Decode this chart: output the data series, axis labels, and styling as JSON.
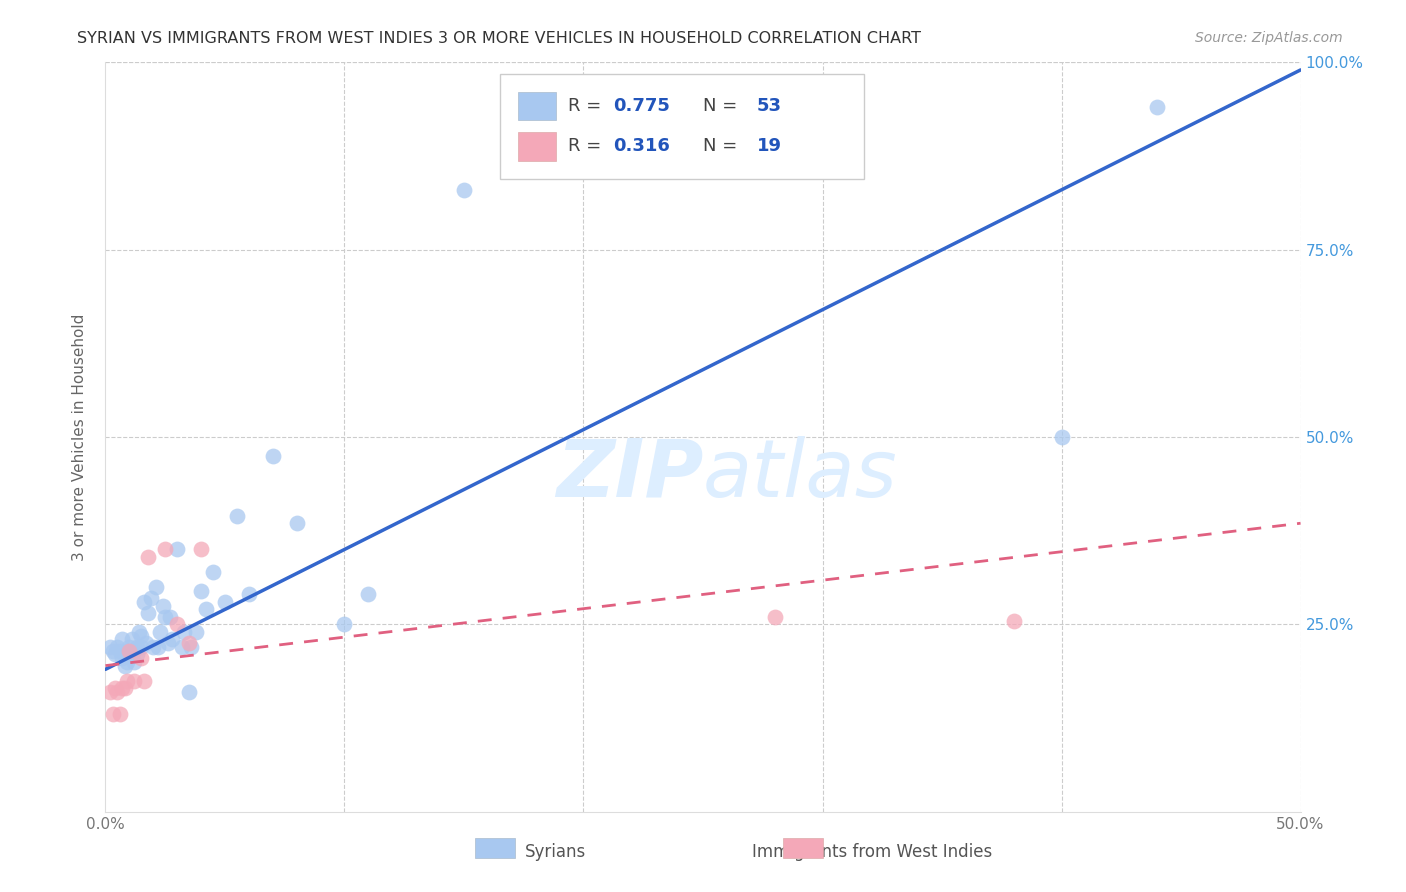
{
  "title": "SYRIAN VS IMMIGRANTS FROM WEST INDIES 3 OR MORE VEHICLES IN HOUSEHOLD CORRELATION CHART",
  "source": "Source: ZipAtlas.com",
  "ylabel": "3 or more Vehicles in Household",
  "xmin": 0.0,
  "xmax": 0.5,
  "ymin": 0.0,
  "ymax": 1.0,
  "syrian_color": "#a8c8f0",
  "syrian_edge_color": "#88aadd",
  "west_indies_color": "#f4a8b8",
  "west_indies_edge_color": "#dd88aa",
  "syrian_line_color": "#3366cc",
  "west_indies_line_color": "#e06080",
  "R_syrian": 0.775,
  "N_syrian": 53,
  "R_west_indies": 0.316,
  "N_west_indies": 19,
  "watermark_zip": "ZIP",
  "watermark_atlas": "atlas",
  "watermark_color": "#ddeeff",
  "legend_label_1": "Syrians",
  "legend_label_2": "Immigrants from West Indies",
  "syrian_scatter_x": [
    0.002,
    0.003,
    0.004,
    0.005,
    0.006,
    0.007,
    0.007,
    0.008,
    0.008,
    0.009,
    0.009,
    0.01,
    0.01,
    0.011,
    0.012,
    0.012,
    0.013,
    0.013,
    0.014,
    0.015,
    0.015,
    0.016,
    0.017,
    0.018,
    0.019,
    0.02,
    0.021,
    0.022,
    0.023,
    0.024,
    0.025,
    0.026,
    0.027,
    0.028,
    0.03,
    0.032,
    0.033,
    0.035,
    0.036,
    0.038,
    0.04,
    0.042,
    0.045,
    0.05,
    0.055,
    0.06,
    0.07,
    0.08,
    0.1,
    0.11,
    0.15,
    0.4,
    0.44
  ],
  "syrian_scatter_y": [
    0.22,
    0.215,
    0.21,
    0.22,
    0.215,
    0.205,
    0.23,
    0.21,
    0.195,
    0.215,
    0.2,
    0.22,
    0.215,
    0.23,
    0.2,
    0.215,
    0.21,
    0.22,
    0.24,
    0.235,
    0.22,
    0.28,
    0.225,
    0.265,
    0.285,
    0.22,
    0.3,
    0.22,
    0.24,
    0.275,
    0.26,
    0.225,
    0.26,
    0.23,
    0.35,
    0.22,
    0.24,
    0.16,
    0.22,
    0.24,
    0.295,
    0.27,
    0.32,
    0.28,
    0.395,
    0.29,
    0.475,
    0.385,
    0.25,
    0.29,
    0.83,
    0.5,
    0.94
  ],
  "west_indies_scatter_x": [
    0.002,
    0.003,
    0.004,
    0.005,
    0.006,
    0.007,
    0.008,
    0.009,
    0.01,
    0.012,
    0.015,
    0.016,
    0.018,
    0.025,
    0.03,
    0.035,
    0.04,
    0.28,
    0.38
  ],
  "west_indies_scatter_y": [
    0.16,
    0.13,
    0.165,
    0.16,
    0.13,
    0.165,
    0.165,
    0.175,
    0.215,
    0.175,
    0.205,
    0.175,
    0.34,
    0.35,
    0.25,
    0.225,
    0.35,
    0.26,
    0.255
  ],
  "syrian_line_x": [
    0.0,
    0.5
  ],
  "syrian_line_y": [
    0.19,
    0.99
  ],
  "west_indies_line_x": [
    0.0,
    0.5
  ],
  "west_indies_line_y": [
    0.195,
    0.385
  ]
}
